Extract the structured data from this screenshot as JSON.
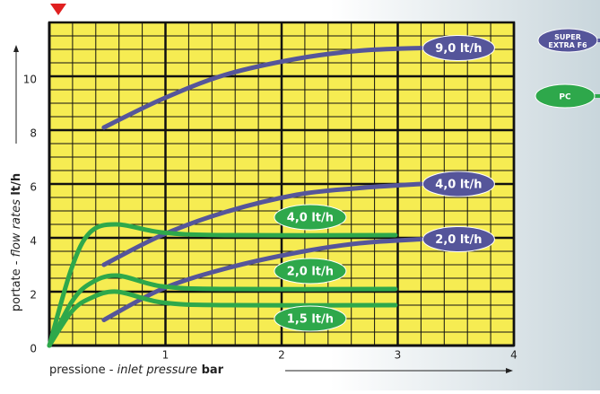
{
  "chart_data": {
    "type": "line",
    "x_label": [
      "pressione - ",
      "inlet pressure",
      " bar"
    ],
    "y_label": [
      "portate - ",
      "flow rates",
      " lt/h"
    ],
    "xlim": [
      0,
      4
    ],
    "ylim": [
      0,
      12
    ],
    "xticks": [
      1,
      2,
      3,
      4
    ],
    "yticks": [
      0,
      2,
      4,
      6,
      8,
      10
    ],
    "grid": true,
    "legend": [
      {
        "lines": [
          "SUPER",
          "EXTRA F6"
        ],
        "color": "#55559a"
      },
      {
        "lines": [
          "PC"
        ],
        "color": "#2ea84b"
      }
    ],
    "series": [
      {
        "name": "9,0 lt/h",
        "color": "#55559a",
        "x": [
          0.47,
          0.97,
          1.51,
          2.13,
          2.67,
          3.2
        ],
        "values": [
          8.1,
          9.15,
          10.05,
          10.65,
          10.95,
          11.05
        ]
      },
      {
        "name": "4,0 lt/h",
        "color": "#55559a",
        "x": [
          0.47,
          0.97,
          1.51,
          2.13,
          2.67,
          3.2
        ],
        "values": [
          3.0,
          4.1,
          4.95,
          5.6,
          5.85,
          6.0
        ]
      },
      {
        "name": "2,0 lt/h",
        "color": "#55559a",
        "x": [
          0.47,
          0.97,
          1.51,
          2.13,
          2.67,
          3.2
        ],
        "values": [
          0.95,
          2.1,
          2.85,
          3.45,
          3.8,
          3.95
        ]
      },
      {
        "name": "4,0 lt/h",
        "color": "#2ea84b",
        "x": [
          0,
          0.19,
          0.35,
          0.58,
          0.97,
          1.51,
          2.98
        ],
        "values": [
          0,
          2.85,
          4.2,
          4.5,
          4.2,
          4.1,
          4.1
        ]
      },
      {
        "name": "2,0 lt/h",
        "color": "#2ea84b",
        "x": [
          0,
          0.19,
          0.35,
          0.58,
          0.97,
          1.51,
          2.98
        ],
        "values": [
          0,
          1.6,
          2.3,
          2.6,
          2.2,
          2.1,
          2.1
        ]
      },
      {
        "name": "1,5 lt/h",
        "color": "#2ea84b",
        "x": [
          0,
          0.19,
          0.35,
          0.58,
          0.97,
          1.51,
          2.98
        ],
        "values": [
          0,
          1.25,
          1.75,
          2.0,
          1.6,
          1.5,
          1.5
        ]
      }
    ]
  }
}
